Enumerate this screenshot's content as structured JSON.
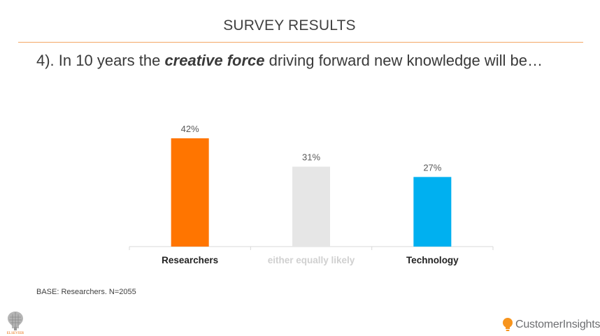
{
  "header": {
    "title": "SURVEY RESULTS"
  },
  "question": {
    "prefix": "4). In 10 years the ",
    "emphasis": "creative force",
    "suffix": " driving forward new knowledge will be…"
  },
  "footer": {
    "base_note": "BASE: Researchers. N=2055",
    "brand_left": "ELSEVIER",
    "brand_right": "CustomerInsights"
  },
  "colors": {
    "accent_rule": "#f3a866",
    "researchers": "#ff7500",
    "equally": "#e6e6e6",
    "technology": "#00b0f0",
    "brand_orange": "#f7941d"
  },
  "chart_data": {
    "type": "bar",
    "title": "",
    "xlabel": "",
    "ylabel": "",
    "categories": [
      "Researchers",
      "either equally likely",
      "Technology"
    ],
    "values": [
      42,
      31,
      27
    ],
    "value_labels": [
      "42%",
      "31%",
      "27%"
    ],
    "unit": "%",
    "ylim": [
      0,
      50
    ],
    "grid": false,
    "legend": "none",
    "bar_colors": [
      "#ff7500",
      "#e6e6e6",
      "#00b0f0"
    ],
    "category_label_colors": [
      "#222222",
      "#d0d0d0",
      "#222222"
    ]
  }
}
